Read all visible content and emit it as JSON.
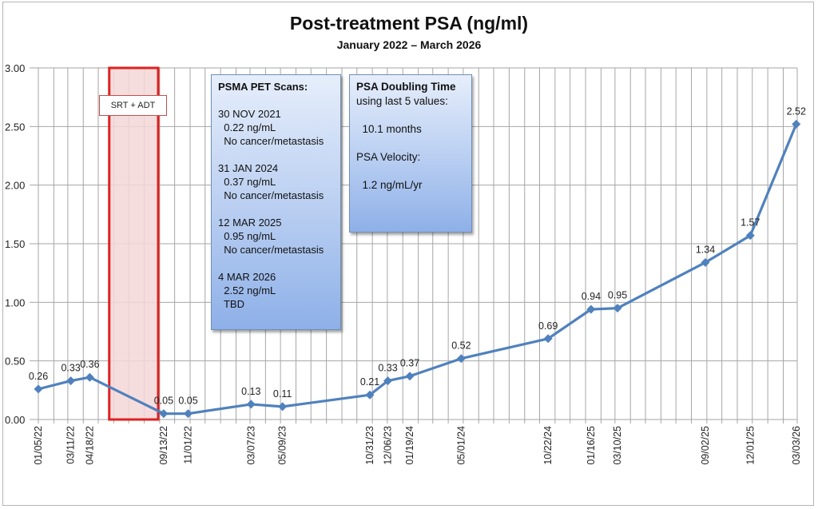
{
  "chart_data": {
    "type": "line",
    "title": "Post-treatment PSA (ng/ml)",
    "subtitle": "January 2022 – March 2026",
    "xlabel": "",
    "ylabel": "",
    "x_axis_type": "date",
    "x_range": [
      "2022-01-05",
      "2026-03-05"
    ],
    "x_gridlines": "monthly",
    "ylim": [
      0,
      3
    ],
    "y_ticks": [
      "0.00",
      "0.50",
      "1.00",
      "1.50",
      "2.00",
      "2.50",
      "3.00"
    ],
    "grid": true,
    "legend": "none",
    "series": [
      {
        "name": "PSA",
        "color": "#4f81bd",
        "marker": "diamond",
        "points": [
          {
            "date": "2022-01-05",
            "label": "01/05/22",
            "value": 0.26
          },
          {
            "date": "2022-03-11",
            "label": "03/11/22",
            "value": 0.33
          },
          {
            "date": "2022-04-18",
            "label": "04/18/22",
            "value": 0.36
          },
          {
            "date": "2022-09-13",
            "label": "09/13/22",
            "value": 0.05
          },
          {
            "date": "2022-11-01",
            "label": "11/01/22",
            "value": 0.05
          },
          {
            "date": "2023-03-07",
            "label": "03/07/23",
            "value": 0.13
          },
          {
            "date": "2023-05-09",
            "label": "05/09/23",
            "value": 0.11
          },
          {
            "date": "2023-10-31",
            "label": "10/31/23",
            "value": 0.21
          },
          {
            "date": "2023-12-06",
            "label": "12/06/23",
            "value": 0.33
          },
          {
            "date": "2024-01-19",
            "label": "01/19/24",
            "value": 0.37
          },
          {
            "date": "2024-05-01",
            "label": "05/01/24",
            "value": 0.52
          },
          {
            "date": "2024-10-22",
            "label": "10/22/24",
            "value": 0.69
          },
          {
            "date": "2025-01-16",
            "label": "01/16/25",
            "value": 0.94
          },
          {
            "date": "2025-03-10",
            "label": "03/10/25",
            "value": 0.95
          },
          {
            "date": "2025-09-02",
            "label": "09/02/25",
            "value": 1.34
          },
          {
            "date": "2025-12-01",
            "label": "12/01/25",
            "value": 1.57
          },
          {
            "date": "2026-03-03",
            "label": "03/03/26",
            "value": 2.52
          }
        ]
      }
    ],
    "annotations": {
      "treatment_band": {
        "label": "SRT + ADT",
        "start": "2022-05-27",
        "end": "2022-09-02",
        "color": "#e02020",
        "fill": "#f4d7d7"
      },
      "psma_box": {
        "lines": [
          {
            "text": "PSMA PET Scans:",
            "bold": true
          },
          {
            "text": ""
          },
          {
            "text": "30 NOV 2021"
          },
          {
            "text": "  0.22 ng/mL"
          },
          {
            "text": "  No cancer/metastasis"
          },
          {
            "text": ""
          },
          {
            "text": "31 JAN 2024"
          },
          {
            "text": "  0.37 ng/mL"
          },
          {
            "text": "  No cancer/metastasis"
          },
          {
            "text": ""
          },
          {
            "text": "12 MAR 2025"
          },
          {
            "text": "  0.95 ng/mL"
          },
          {
            "text": "  No cancer/metastasis"
          },
          {
            "text": ""
          },
          {
            "text": "4 MAR 2026"
          },
          {
            "text": "  2.52 ng/mL"
          },
          {
            "text": "  TBD"
          }
        ]
      },
      "doubling_box": {
        "lines": [
          {
            "text": "PSA Doubling Time",
            "bold": true
          },
          {
            "text": "using last 5 values:"
          },
          {
            "text": ""
          },
          {
            "text": "  10.1 months"
          },
          {
            "text": ""
          },
          {
            "text": "PSA Velocity:"
          },
          {
            "text": ""
          },
          {
            "text": "  1.2 ng/mL/yr"
          }
        ]
      }
    }
  }
}
